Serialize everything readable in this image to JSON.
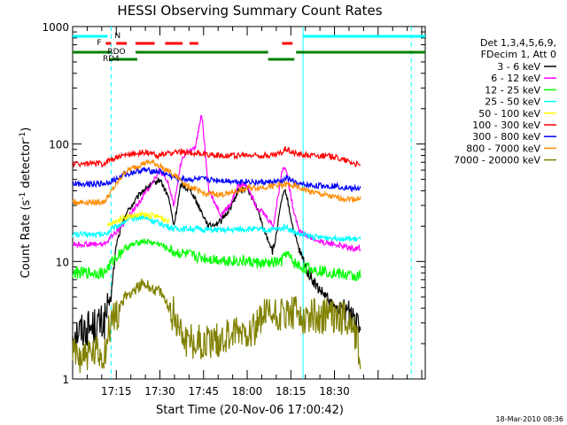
{
  "chart_data": {
    "type": "line",
    "title": "HESSI Observing Summary Count Rates",
    "xlabel": "Start Time (20-Nov-06 17:00:42)",
    "ylabel_main": "Count Rate (s",
    "ylabel_sup1": "-1",
    "ylabel_mid": " detector",
    "ylabel_sup2": "-1",
    "ylabel_end": ")",
    "y_scale": "log",
    "ylim": [
      1,
      1000
    ],
    "xlim_minutes": [
      17.0,
      19.02
    ],
    "x_ticks": [
      {
        "label": "17:15",
        "value": 17.25
      },
      {
        "label": "17:30",
        "value": 17.5
      },
      {
        "label": "17:45",
        "value": 17.75
      },
      {
        "label": "18:00",
        "value": 18.0
      },
      {
        "label": "18:15",
        "value": 18.25
      },
      {
        "label": "18:30",
        "value": 18.5
      }
    ],
    "y_ticks": [
      {
        "label": "1",
        "value": 1
      },
      {
        "label": "10",
        "value": 10
      },
      {
        "label": "100",
        "value": 100
      },
      {
        "label": "1000",
        "value": 1000
      }
    ],
    "legend_header": [
      "Det 1,3,4,5,6,9,",
      "FDecim 1, Att 0"
    ],
    "legend_placement": "right",
    "series": [
      {
        "name": "3 - 6 keV",
        "color": "#000000",
        "x": [
          17.0,
          17.18,
          17.22,
          17.25,
          17.3,
          17.4,
          17.5,
          17.55,
          17.58,
          17.62,
          17.68,
          17.72,
          17.78,
          17.85,
          17.9,
          17.95,
          18.0,
          18.05,
          18.1,
          18.15,
          18.2,
          18.22,
          18.26,
          18.3,
          18.35,
          18.4,
          18.45,
          18.5,
          18.55,
          18.6,
          18.65
        ],
        "y": [
          2.5,
          3.0,
          5.0,
          14,
          25,
          40,
          50,
          35,
          20,
          45,
          40,
          30,
          20,
          22,
          28,
          40,
          42,
          30,
          18,
          12,
          35,
          40,
          20,
          12,
          8,
          6,
          5,
          4,
          4,
          3.5,
          3.5
        ]
      },
      {
        "name": "6 - 12 keV",
        "color": "#ff00ff",
        "x": [
          17.0,
          17.18,
          17.25,
          17.3,
          17.4,
          17.5,
          17.55,
          17.58,
          17.62,
          17.65,
          17.7,
          17.74,
          17.78,
          17.85,
          17.9,
          17.95,
          18.0,
          18.05,
          18.1,
          18.15,
          18.2,
          18.22,
          18.26,
          18.3,
          18.4,
          18.5,
          18.6,
          18.65
        ],
        "y": [
          14,
          14,
          18,
          22,
          35,
          60,
          45,
          30,
          70,
          85,
          90,
          180,
          40,
          25,
          30,
          45,
          45,
          30,
          25,
          20,
          60,
          65,
          30,
          18,
          15,
          14,
          13,
          13
        ]
      },
      {
        "name": "12 - 25 keV",
        "color": "#00ff00",
        "x": [
          17.0,
          17.18,
          17.25,
          17.3,
          17.4,
          17.5,
          17.58,
          17.65,
          17.7,
          17.8,
          17.9,
          18.0,
          18.1,
          18.2,
          18.22,
          18.26,
          18.3,
          18.4,
          18.5,
          18.6,
          18.65
        ],
        "y": [
          8,
          8,
          11,
          13,
          15,
          14,
          12,
          11.5,
          11,
          10.5,
          10.2,
          10,
          9.5,
          10,
          12,
          10,
          9,
          8.5,
          8,
          7.5,
          7.5
        ]
      },
      {
        "name": "25 - 50 keV",
        "color": "#00ffff",
        "x": [
          17.0,
          17.18,
          17.25,
          17.3,
          17.4,
          17.5,
          17.58,
          17.65,
          17.7,
          17.8,
          17.9,
          18.0,
          18.1,
          18.2,
          18.22,
          18.26,
          18.3,
          18.4,
          18.5,
          18.6,
          18.65
        ],
        "y": [
          17,
          17,
          20,
          22,
          24,
          21,
          19,
          19,
          19,
          18.5,
          18.5,
          19,
          18.5,
          19,
          20,
          18,
          17,
          16,
          16,
          15.5,
          15.5
        ]
      },
      {
        "name": "50 - 100 keV",
        "color": "#ffff00",
        "x": [
          17.2,
          17.25,
          17.3,
          17.4,
          17.5,
          17.55
        ],
        "y": [
          20,
          22,
          24,
          25,
          24,
          22
        ]
      },
      {
        "name": "100 - 300 keV",
        "color": "#ff0000",
        "x": [
          17.0,
          17.18,
          17.22,
          17.3,
          17.4,
          17.5,
          17.58,
          17.65,
          17.75,
          17.85,
          17.95,
          18.0,
          18.1,
          18.15,
          18.2,
          18.22,
          18.26,
          18.3,
          18.4,
          18.5,
          18.6,
          18.65
        ],
        "y": [
          68,
          68,
          75,
          80,
          85,
          80,
          85,
          85,
          82,
          80,
          80,
          80,
          80,
          80,
          85,
          92,
          85,
          82,
          80,
          78,
          70,
          65
        ]
      },
      {
        "name": "300 - 800 keV",
        "color": "#0000ff",
        "x": [
          17.0,
          17.18,
          17.25,
          17.3,
          17.4,
          17.5,
          17.58,
          17.65,
          17.75,
          17.85,
          17.95,
          18.0,
          18.1,
          18.2,
          18.22,
          18.26,
          18.3,
          18.4,
          18.5,
          18.6,
          18.65
        ],
        "y": [
          46,
          46,
          50,
          55,
          60,
          58,
          52,
          50,
          50,
          49,
          48,
          48,
          47,
          48,
          52,
          48,
          45,
          44,
          44,
          42,
          42
        ]
      },
      {
        "name": "800 - 7000 keV",
        "color": "#ff8c00",
        "x": [
          17.0,
          17.18,
          17.25,
          17.3,
          17.4,
          17.45,
          17.5,
          17.58,
          17.65,
          17.75,
          17.85,
          17.95,
          18.0,
          18.1,
          18.2,
          18.26,
          18.3,
          18.4,
          18.5,
          18.6,
          18.65
        ],
        "y": [
          32,
          32,
          45,
          58,
          68,
          70,
          65,
          55,
          45,
          38,
          37,
          40,
          42,
          43,
          45,
          45,
          42,
          38,
          35,
          34,
          34
        ]
      },
      {
        "name": "7000 - 20000 keV",
        "color": "#808000",
        "x": [
          17.0,
          17.18,
          17.22,
          17.3,
          17.4,
          17.5,
          17.58,
          17.65,
          17.75,
          17.85,
          17.95,
          18.05,
          18.1,
          18.2,
          18.26,
          18.3,
          18.4,
          18.5,
          18.6,
          18.65
        ],
        "y": [
          1.6,
          1.6,
          3.0,
          5.0,
          6.5,
          5.5,
          3.5,
          2.2,
          2.0,
          2.2,
          2.5,
          2.8,
          3.5,
          3.5,
          3.5,
          3.5,
          3.5,
          3.5,
          3.0,
          1.6
        ]
      }
    ],
    "flag_labels": {
      "n": "N",
      "f": "F",
      "rdo": "RDO",
      "rd4": "RD4"
    },
    "flag_colors": {
      "n": "#00ffff",
      "f": "#ff0000",
      "rdo": "#008000",
      "rd4": "#008000"
    },
    "n_flag_segments": [
      [
        17.0,
        17.2
      ],
      [
        18.32,
        19.02
      ]
    ],
    "f_flag_segments": [
      [
        17.19,
        17.22
      ],
      [
        17.25,
        17.31
      ],
      [
        17.36,
        17.47
      ],
      [
        17.53,
        17.63
      ],
      [
        17.67,
        17.72
      ],
      [
        18.2,
        18.26
      ]
    ],
    "rdo_flag_segments": [
      [
        17.0,
        17.22
      ],
      [
        17.36,
        18.12
      ],
      [
        18.28,
        19.02
      ]
    ],
    "rd4_flag_segments": [
      [
        17.21,
        17.37
      ],
      [
        18.12,
        18.27
      ]
    ],
    "vertical_markers": [
      {
        "x": 17.22,
        "style": "dashed",
        "color": "#00ffff"
      },
      {
        "x": 18.32,
        "style": "solid",
        "color": "#00ffff"
      },
      {
        "x": 18.94,
        "style": "dashed",
        "color": "#00ffff"
      }
    ],
    "timestamp": "18-Mar-2010 08:36"
  }
}
